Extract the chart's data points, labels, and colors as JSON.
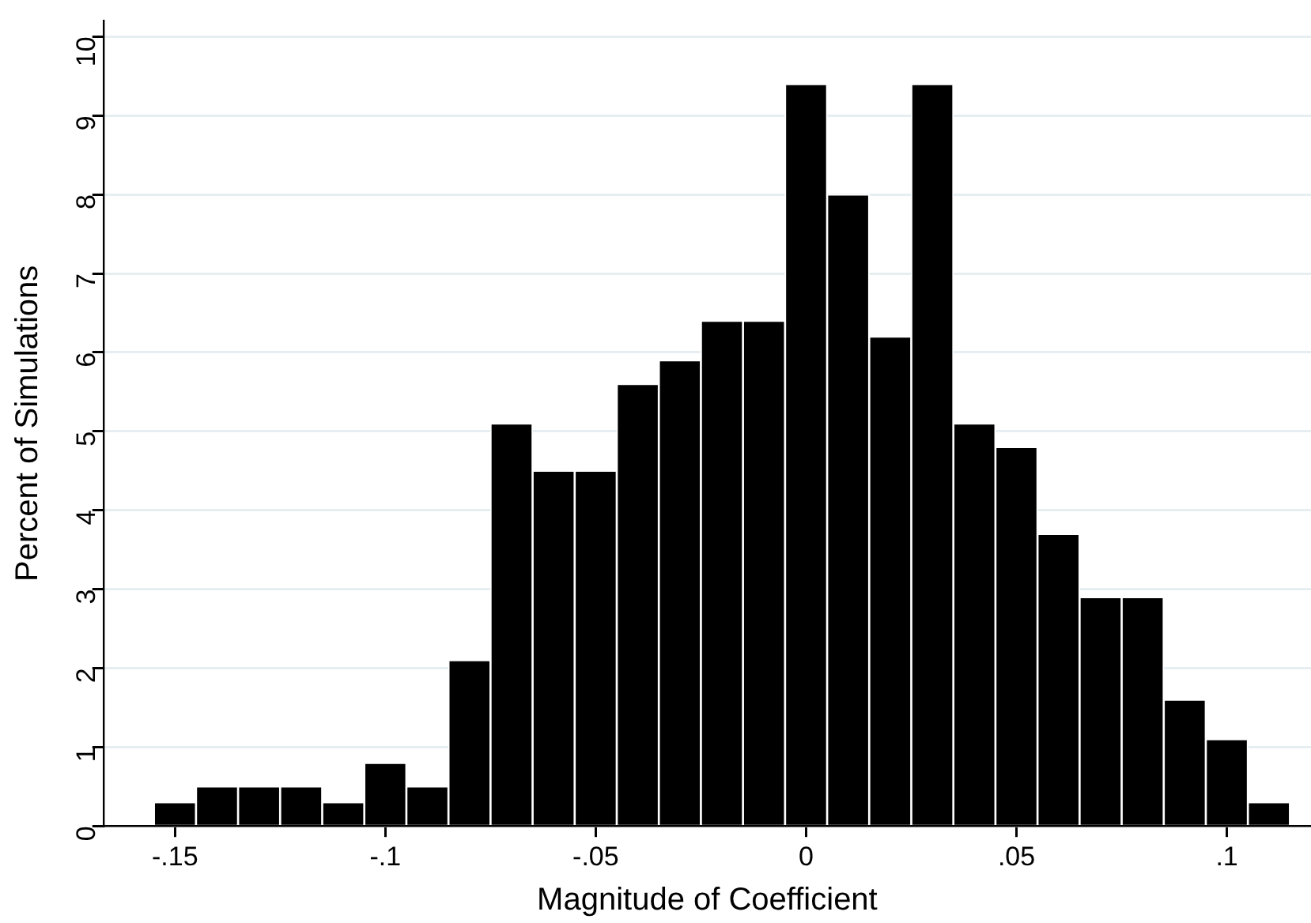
{
  "chart_data": {
    "type": "histogram",
    "xlabel": "Magnitude of Coefficient",
    "ylabel": "Percent of Simulations",
    "bins": [
      -0.155,
      -0.145,
      -0.135,
      -0.125,
      -0.115,
      -0.105,
      -0.095,
      -0.085,
      -0.075,
      -0.065,
      -0.055,
      -0.045,
      -0.035,
      -0.025,
      -0.015,
      -0.005,
      0.005,
      0.015,
      0.025,
      0.035,
      0.045,
      0.055,
      0.065,
      0.075,
      0.085,
      0.095,
      0.105,
      0.115
    ],
    "values": [
      0.3,
      0.5,
      0.5,
      0.5,
      0.3,
      0.8,
      0.5,
      2.1,
      5.1,
      4.5,
      4.5,
      5.6,
      5.9,
      6.4,
      6.4,
      9.4,
      8.0,
      6.2,
      9.4,
      5.1,
      4.8,
      3.7,
      2.9,
      2.9,
      1.6,
      1.1,
      0.3
    ],
    "color": "#000000",
    "xlim": [
      -0.167,
      0.12
    ],
    "xticks": [
      {
        "value": -0.15,
        "label": "-.15"
      },
      {
        "value": -0.1,
        "label": "-.1"
      },
      {
        "value": -0.05,
        "label": "-.05"
      },
      0,
      {
        "value": 0.05,
        "label": ".05"
      },
      {
        "value": 0.1,
        "label": ".1"
      }
    ],
    "ylim": [
      0,
      10.2
    ],
    "yticks": [
      0,
      1,
      2,
      3,
      4,
      5,
      6,
      7,
      8,
      9,
      10
    ],
    "grid": "y",
    "legend": false
  }
}
